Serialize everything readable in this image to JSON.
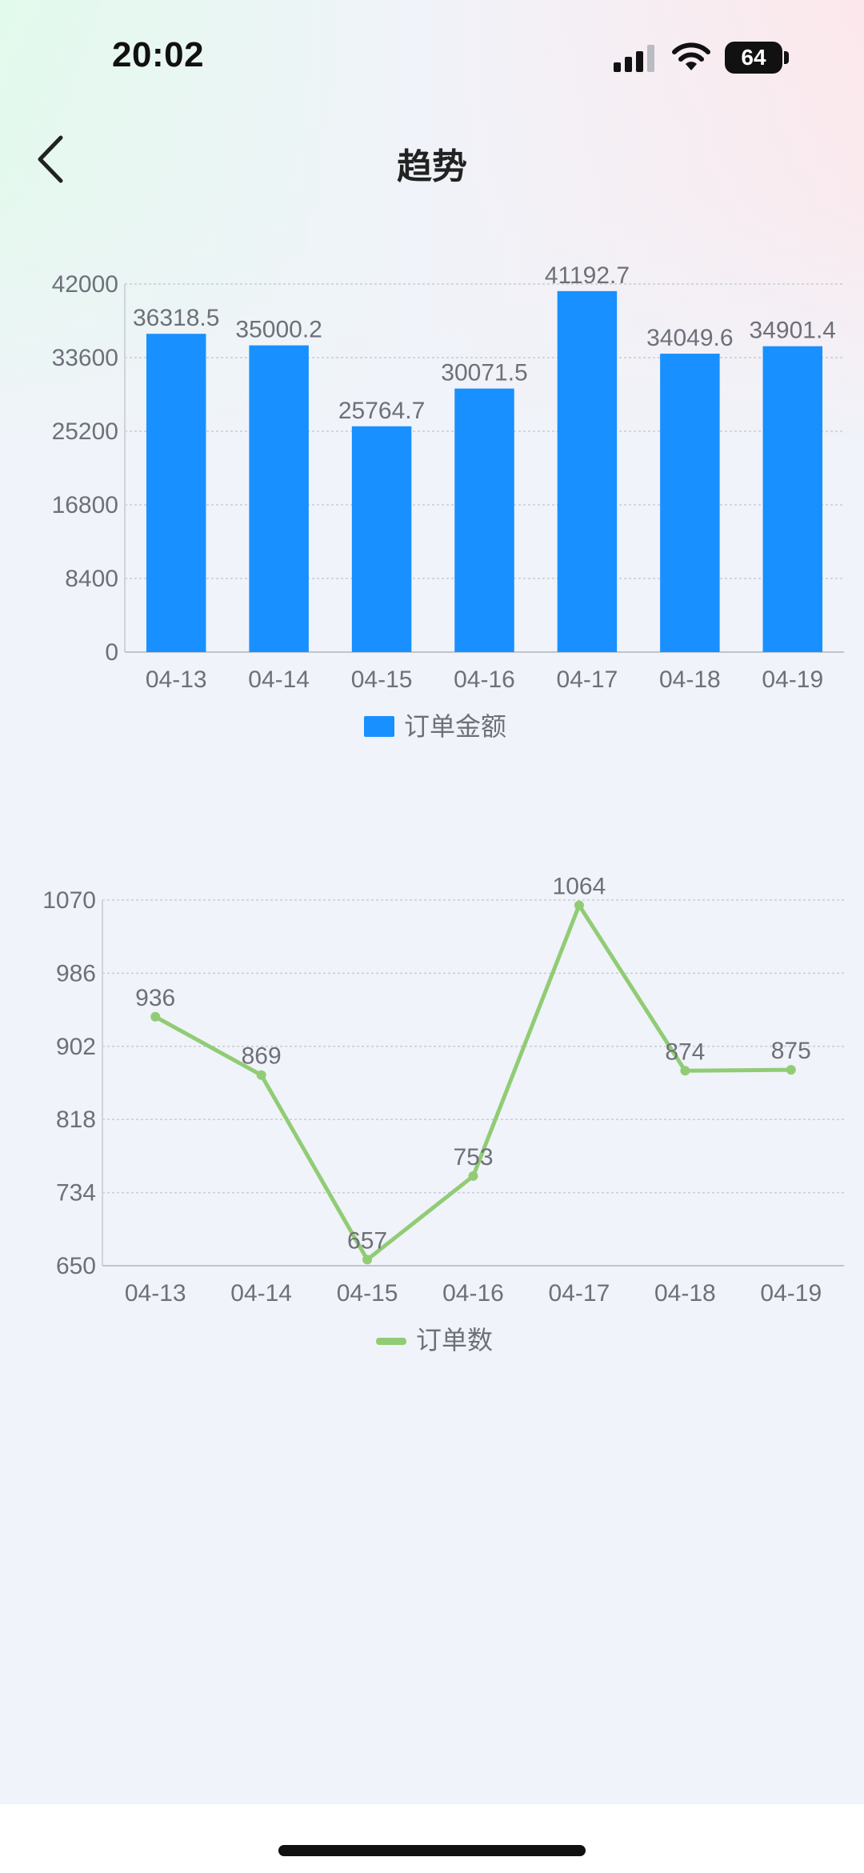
{
  "status_bar": {
    "time": "20:02",
    "battery": "64",
    "icons": [
      "cellular-signal-icon",
      "wifi-icon",
      "battery-icon"
    ]
  },
  "header": {
    "title": "趋势",
    "back_icon": "chevron-left-icon"
  },
  "charts": [
    {
      "type": "bar",
      "categories": [
        "04-13",
        "04-14",
        "04-15",
        "04-16",
        "04-17",
        "04-18",
        "04-19"
      ],
      "series": [
        {
          "name": "订单金额",
          "values": [
            36318.5,
            35000.2,
            25764.7,
            30071.5,
            41192.7,
            34049.6,
            34901.4
          ],
          "color": "#1890ff"
        }
      ],
      "yticks": [
        "0",
        "8400",
        "16800",
        "25200",
        "33600",
        "42000"
      ],
      "ylim": [
        0,
        42000
      ],
      "grid": true,
      "legend": "bottom-center"
    },
    {
      "type": "line",
      "categories": [
        "04-13",
        "04-14",
        "04-15",
        "04-16",
        "04-17",
        "04-18",
        "04-19"
      ],
      "series": [
        {
          "name": "订单数",
          "values": [
            936,
            869,
            657,
            753,
            1064,
            874,
            875
          ],
          "color": "#91cc75"
        }
      ],
      "yticks": [
        "650",
        "734",
        "818",
        "902",
        "986",
        "1070"
      ],
      "ylim": [
        650,
        1070
      ],
      "grid": true,
      "legend": "bottom-center"
    }
  ]
}
